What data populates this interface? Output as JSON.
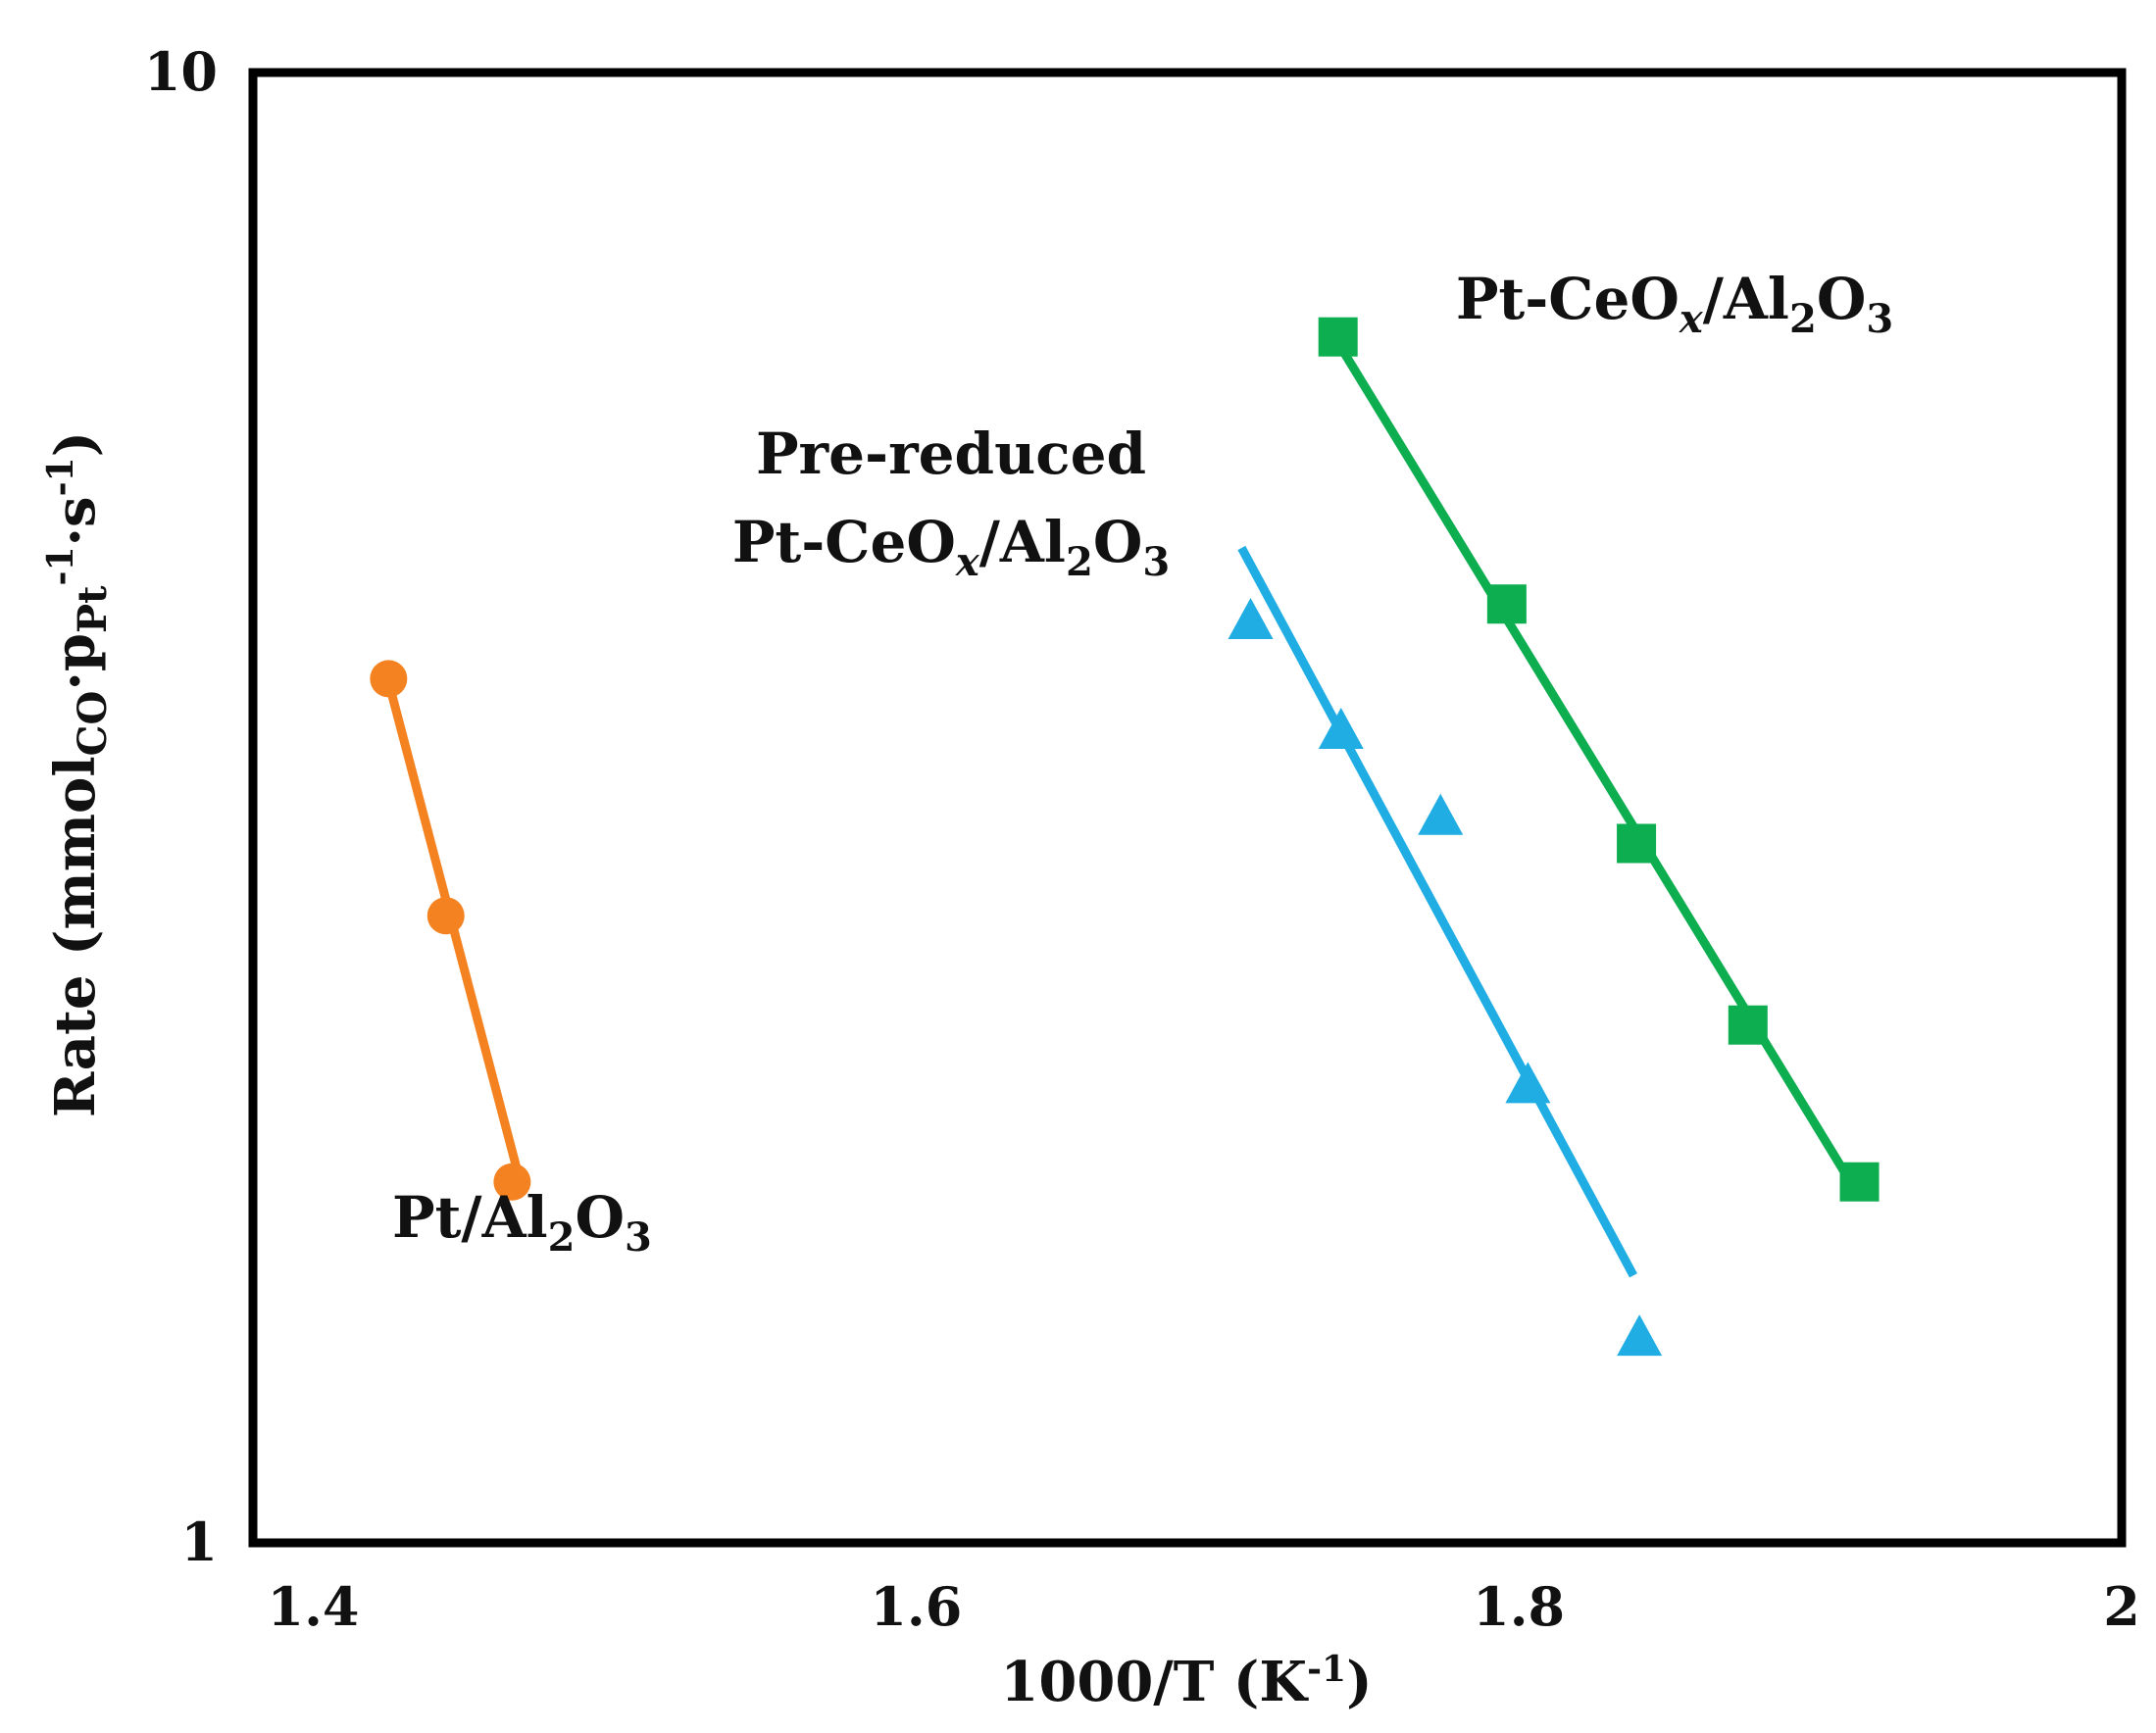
{
  "chart_data": {
    "type": "scatter",
    "title": "",
    "xlabel": "1000/T (K-1)",
    "xlabel_parts": {
      "main": "1000/T (K",
      "sup": "-1",
      "close": ")"
    },
    "ylabel": "Rate (mmolCO·pPt-1·s-1)",
    "ylabel_parts": {
      "pre": "Rate (mmol",
      "sub1": "CO",
      "mid1": "·p",
      "sub2": "Pt",
      "sup1": "-1",
      "mid2": "·s",
      "sup2": "-1",
      "close": ")"
    },
    "xlim": [
      1.38,
      2.0
    ],
    "ylim": [
      1,
      10
    ],
    "yscale": "log",
    "x_ticks": [
      1.4,
      1.6,
      1.8,
      2.0
    ],
    "x_tick_labels": [
      "1.4",
      "1.6",
      "1.8",
      "2"
    ],
    "y_ticks": [
      1,
      10
    ],
    "y_tick_labels": [
      "1",
      "10"
    ],
    "grid": false,
    "series": [
      {
        "name": "Pt/Al2O3",
        "label_parts": {
          "a": "Pt/Al",
          "s1": "2",
          "b": "O",
          "s2": "3"
        },
        "color": "#F58220",
        "marker": "circle",
        "x": [
          1.425,
          1.444,
          1.466
        ],
        "y": [
          3.87,
          2.67,
          1.76
        ],
        "fit": {
          "x": [
            1.425,
            1.469
          ],
          "y": [
            3.85,
            1.75
          ]
        }
      },
      {
        "name": "Pre-reduced Pt-CeOx/Al2O3",
        "label_line1": "Pre-reduced",
        "label_parts": {
          "a": "Pt-CeO",
          "s1": "x",
          "b": "/Al",
          "s2": "2",
          "c": "O",
          "s3": "3"
        },
        "color": "#1FADE4",
        "marker": "triangle",
        "x": [
          1.711,
          1.741,
          1.774,
          1.803,
          1.84
        ],
        "y": [
          4.24,
          3.57,
          3.12,
          2.05,
          1.38
        ],
        "fit": {
          "x": [
            1.708,
            1.838
          ],
          "y": [
            4.75,
            1.52
          ]
        }
      },
      {
        "name": "Pt-CeOx/Al2O3",
        "label_parts": {
          "a": "Pt-CeO",
          "s1": "x",
          "b": "/Al",
          "s2": "2",
          "c": "O",
          "s3": "3"
        },
        "color": "#0DAE4F",
        "marker": "square",
        "x": [
          1.74,
          1.796,
          1.839,
          1.876,
          1.913
        ],
        "y": [
          6.61,
          4.35,
          2.99,
          2.25,
          1.76
        ],
        "fit": {
          "x": [
            1.74,
            1.91
          ],
          "y": [
            6.55,
            1.76
          ]
        }
      }
    ]
  }
}
